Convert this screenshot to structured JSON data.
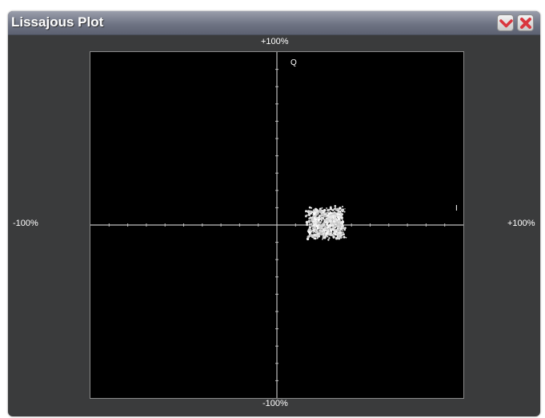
{
  "window": {
    "title": "Lissajous Plot",
    "collapse_icon": "chevron-down-icon",
    "close_icon": "close-x-icon",
    "colors": {
      "titlebar": "#6f7484",
      "panel": "#3a3b3c",
      "plot_background": "#000000",
      "axis": "#bfbfbf",
      "close_accent": "#d9363e"
    }
  },
  "plot": {
    "top_label": "+100%",
    "bottom_label": "-100%",
    "left_label": "-100%",
    "right_label": "+100%",
    "vertical_axis_name": "Q",
    "horizontal_axis_name": "I"
  },
  "chart_data": {
    "type": "scatter",
    "title": "Lissajous Plot",
    "xlabel": "I",
    "ylabel": "Q",
    "xlim": [
      -100,
      100
    ],
    "ylim": [
      -100,
      100
    ],
    "x_ticks": [
      "-100%",
      "+100%"
    ],
    "y_ticks": [
      "-100%",
      "+100%"
    ],
    "grid": false,
    "cluster": {
      "center": [
        26,
        -0.5
      ],
      "x_range": [
        15,
        38
      ],
      "y_range": [
        -9,
        11
      ]
    }
  }
}
